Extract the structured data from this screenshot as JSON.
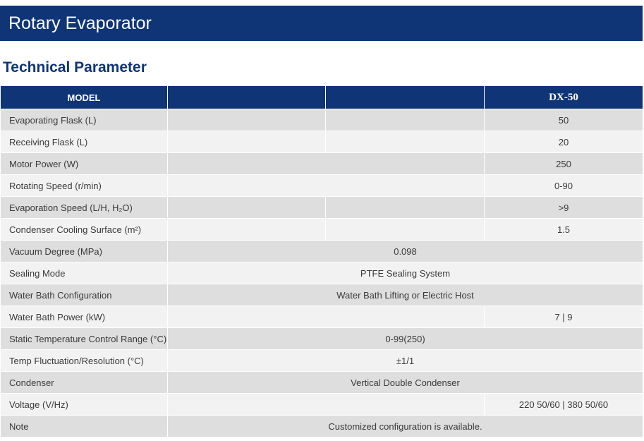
{
  "header": {
    "title": "Rotary Evaporator"
  },
  "section": {
    "title": "Technical Parameter"
  },
  "table": {
    "columns": [
      "MODEL",
      "DX-50"
    ],
    "rows": [
      [
        "Evaporating Flask (L)",
        "50"
      ],
      [
        "Receiving Flask (L)",
        "20"
      ],
      [
        "Motor Power (W)",
        "250"
      ],
      [
        "Rotating Speed (r/min)",
        "0-90"
      ],
      [
        "Evaporation Speed (L/H, H₂O)",
        ">9"
      ],
      [
        "Condenser Cooling Surface (m²)",
        "1.5"
      ],
      [
        "Vacuum Degree (MPa)",
        "0.098"
      ],
      [
        "Sealing Mode",
        "PTFE Sealing System"
      ],
      [
        "Water Bath Configuration",
        "Water Bath Lifting or Electric Host"
      ],
      [
        "Water Bath Power (kW)",
        "7 | 9"
      ],
      [
        "Static Temperature Control Range (°C)",
        "0-99(250)"
      ],
      [
        "Temp Fluctuation/Resolution (°C)",
        "±1/1"
      ],
      [
        "Condenser",
        "Vertical Double Condenser"
      ],
      [
        "Voltage (V/Hz)",
        "220 50/60 | 380 50/60"
      ],
      [
        "Note",
        "Customized configuration is available."
      ]
    ]
  }
}
